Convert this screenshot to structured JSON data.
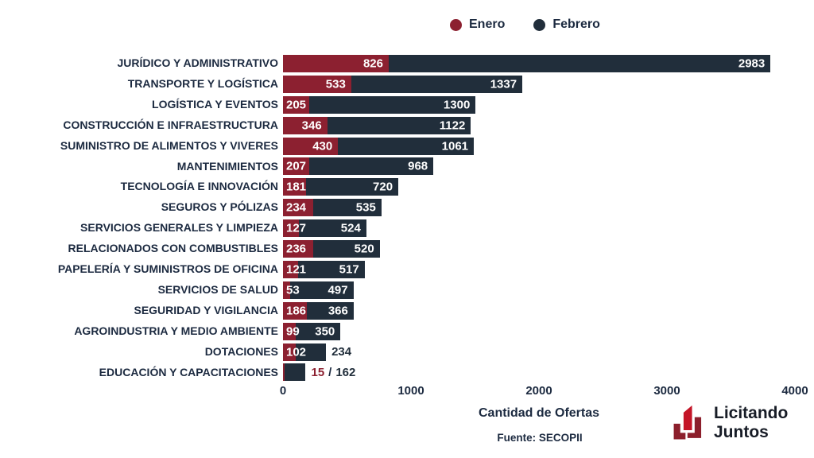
{
  "chart_data": {
    "type": "bar",
    "orientation": "horizontal",
    "stacked": true,
    "title": "",
    "xlabel": "Cantidad de Ofertas",
    "ylabel": "",
    "xlim": [
      0,
      4000
    ],
    "x_ticks": [
      0,
      1000,
      2000,
      3000,
      4000
    ],
    "grid": false,
    "legend_position": "top",
    "categories": [
      "JURÍDICO Y ADMINISTRATIVO",
      "TRANSPORTE Y LOGÍSTICA",
      "LOGÍSTICA Y EVENTOS",
      "CONSTRUCCIÓN E INFRAESTRUCTURA",
      "SUMINISTRO DE ALIMENTOS Y VIVERES",
      "MANTENIMIENTOS",
      "TECNOLOGÍA E INNOVACIÓN",
      "SEGUROS Y PÓLIZAS",
      "SERVICIOS GENERALES Y LIMPIEZA",
      "RELACIONADOS CON COMBUSTIBLES",
      "PAPELERÍA Y SUMINISTROS DE OFICINA",
      "SERVICIOS DE SALUD",
      "SEGURIDAD Y VIGILANCIA",
      "AGROINDUSTRIA Y MEDIO AMBIENTE",
      "DOTACIONES",
      "EDUCACIÓN Y CAPACITACIONES"
    ],
    "series": [
      {
        "name": "Enero",
        "color": "#8c2030",
        "values": [
          826,
          533,
          205,
          346,
          430,
          207,
          181,
          234,
          127,
          236,
          121,
          53,
          186,
          99,
          102,
          15
        ]
      },
      {
        "name": "Febrero",
        "color": "#212e3b",
        "values": [
          2983,
          1337,
          1300,
          1122,
          1061,
          968,
          720,
          535,
          524,
          520,
          517,
          497,
          366,
          350,
          234,
          162
        ]
      }
    ],
    "outside_label_separator": "/",
    "source": "Fuente: SECOPII"
  },
  "branding": {
    "name_line1": "Licitando",
    "name_line2": "Juntos",
    "logo_color_bright": "#c41527",
    "logo_color_dark": "#8c1f2c"
  },
  "colors": {
    "text": "#1c2a40",
    "background": "#ffffff",
    "value_label": "#ffffff"
  }
}
